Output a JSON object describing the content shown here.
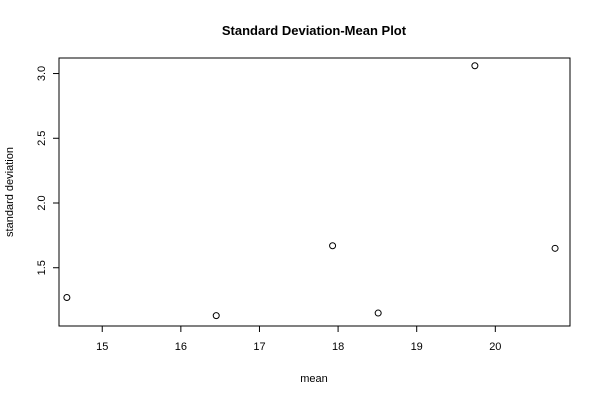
{
  "chart_data": {
    "type": "scatter",
    "title": "Standard Deviation-Mean Plot",
    "xlabel": "mean",
    "ylabel": "standard deviation",
    "xlim": [
      14.45,
      20.95
    ],
    "ylim": [
      1.05,
      3.12
    ],
    "x_ticks": [
      15,
      16,
      17,
      18,
      19,
      20
    ],
    "x_tick_labels": [
      "15",
      "16",
      "17",
      "18",
      "19",
      "20"
    ],
    "y_ticks": [
      1.5,
      2.0,
      2.5,
      3.0
    ],
    "y_tick_labels": [
      "1.5",
      "2.0",
      "2.5",
      "3.0"
    ],
    "grid": false,
    "marker": "open-circle",
    "points": [
      {
        "x": 14.55,
        "y": 1.27
      },
      {
        "x": 16.45,
        "y": 1.13
      },
      {
        "x": 17.93,
        "y": 1.67
      },
      {
        "x": 18.51,
        "y": 1.15
      },
      {
        "x": 19.74,
        "y": 3.06
      },
      {
        "x": 20.76,
        "y": 1.65
      }
    ]
  }
}
